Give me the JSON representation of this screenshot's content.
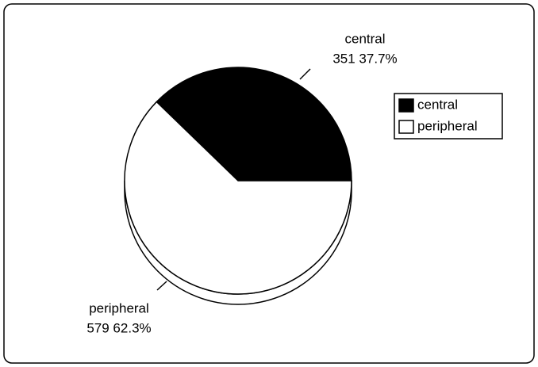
{
  "chart_data": {
    "type": "pie",
    "categories": [
      "central",
      "peripheral"
    ],
    "values": [
      351,
      579
    ],
    "value_labels": [
      "351 37.7%",
      "579 62.3%"
    ],
    "colors": [
      "#000000",
      "#ffffff"
    ],
    "legend": "right"
  }
}
